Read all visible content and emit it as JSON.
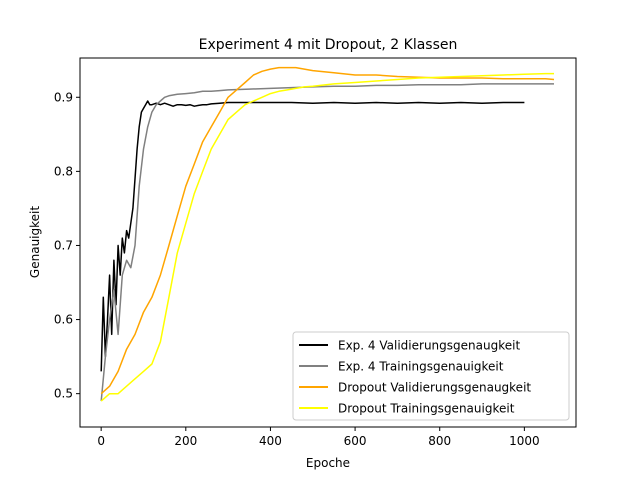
{
  "chart_data": {
    "type": "line",
    "title": "Experiment 4 mit Dropout, 2 Klassen",
    "xlabel": "Epoche",
    "ylabel": "Genauigkeit",
    "xlim": [
      -50,
      1122
    ],
    "ylim": [
      0.455,
      0.953
    ],
    "xticks": [
      0,
      200,
      400,
      600,
      800,
      1000
    ],
    "xtick_labels": [
      "0",
      "200",
      "400",
      "600",
      "800",
      "1000"
    ],
    "yticks": [
      0.5,
      0.6,
      0.7,
      0.8,
      0.9
    ],
    "ytick_labels": [
      "0.5",
      "0.6",
      "0.7",
      "0.8",
      "0.9"
    ],
    "grid": false,
    "legend_position": "lower-right",
    "series": [
      {
        "name": "Exp. 4 Validierungsgenaugkeit",
        "color": "#000000",
        "x": [
          0,
          5,
          10,
          15,
          20,
          25,
          30,
          35,
          40,
          45,
          50,
          55,
          60,
          65,
          70,
          75,
          80,
          85,
          90,
          95,
          100,
          105,
          110,
          115,
          120,
          130,
          140,
          150,
          160,
          170,
          180,
          190,
          200,
          210,
          220,
          230,
          240,
          250,
          260,
          280,
          300,
          350,
          400,
          450,
          500,
          550,
          600,
          650,
          700,
          750,
          800,
          850,
          900,
          950,
          1000
        ],
        "y": [
          0.53,
          0.63,
          0.55,
          0.6,
          0.66,
          0.58,
          0.68,
          0.62,
          0.7,
          0.66,
          0.71,
          0.69,
          0.72,
          0.71,
          0.73,
          0.75,
          0.79,
          0.83,
          0.86,
          0.88,
          0.885,
          0.89,
          0.895,
          0.89,
          0.89,
          0.892,
          0.89,
          0.892,
          0.89,
          0.888,
          0.89,
          0.89,
          0.889,
          0.89,
          0.888,
          0.889,
          0.89,
          0.89,
          0.891,
          0.892,
          0.893,
          0.893,
          0.893,
          0.893,
          0.892,
          0.893,
          0.892,
          0.893,
          0.892,
          0.893,
          0.892,
          0.893,
          0.892,
          0.893,
          0.893
        ]
      },
      {
        "name": "Exp. 4 Trainingsgenauigkeit",
        "color": "#808080",
        "x": [
          0,
          10,
          20,
          30,
          40,
          50,
          60,
          70,
          80,
          90,
          100,
          110,
          120,
          130,
          140,
          150,
          160,
          180,
          200,
          220,
          240,
          260,
          280,
          300,
          350,
          400,
          450,
          500,
          550,
          600,
          650,
          700,
          750,
          800,
          850,
          900,
          950,
          1000,
          1050,
          1070
        ],
        "y": [
          0.49,
          0.55,
          0.6,
          0.64,
          0.58,
          0.66,
          0.68,
          0.67,
          0.7,
          0.78,
          0.83,
          0.86,
          0.88,
          0.89,
          0.895,
          0.9,
          0.902,
          0.904,
          0.905,
          0.906,
          0.908,
          0.908,
          0.909,
          0.91,
          0.911,
          0.912,
          0.913,
          0.914,
          0.915,
          0.915,
          0.916,
          0.916,
          0.917,
          0.917,
          0.917,
          0.918,
          0.918,
          0.918,
          0.918,
          0.918
        ]
      },
      {
        "name": "Dropout Validierungsgenaugkeit",
        "color": "#ffa500",
        "x": [
          0,
          20,
          40,
          60,
          80,
          100,
          120,
          140,
          160,
          180,
          200,
          220,
          240,
          260,
          280,
          300,
          320,
          340,
          360,
          380,
          400,
          420,
          440,
          460,
          480,
          500,
          550,
          600,
          650,
          700,
          750,
          800,
          850,
          900,
          950,
          1000,
          1050,
          1070
        ],
        "y": [
          0.5,
          0.51,
          0.53,
          0.56,
          0.58,
          0.61,
          0.63,
          0.66,
          0.7,
          0.74,
          0.78,
          0.81,
          0.84,
          0.86,
          0.88,
          0.9,
          0.91,
          0.92,
          0.93,
          0.935,
          0.938,
          0.94,
          0.94,
          0.94,
          0.938,
          0.936,
          0.933,
          0.93,
          0.93,
          0.928,
          0.927,
          0.926,
          0.926,
          0.926,
          0.925,
          0.925,
          0.925,
          0.924
        ]
      },
      {
        "name": "Dropout Trainingsgenauigkeit",
        "color": "#ffff00",
        "x": [
          0,
          20,
          40,
          60,
          80,
          100,
          120,
          140,
          160,
          180,
          200,
          220,
          240,
          260,
          280,
          300,
          320,
          340,
          360,
          380,
          400,
          420,
          440,
          460,
          480,
          500,
          550,
          600,
          650,
          700,
          750,
          800,
          850,
          900,
          950,
          1000,
          1050,
          1070
        ],
        "y": [
          0.49,
          0.5,
          0.5,
          0.51,
          0.52,
          0.53,
          0.54,
          0.57,
          0.63,
          0.69,
          0.73,
          0.77,
          0.8,
          0.83,
          0.85,
          0.87,
          0.88,
          0.89,
          0.895,
          0.9,
          0.905,
          0.908,
          0.91,
          0.912,
          0.914,
          0.915,
          0.918,
          0.92,
          0.922,
          0.924,
          0.926,
          0.927,
          0.928,
          0.929,
          0.93,
          0.931,
          0.932,
          0.932
        ]
      }
    ]
  }
}
